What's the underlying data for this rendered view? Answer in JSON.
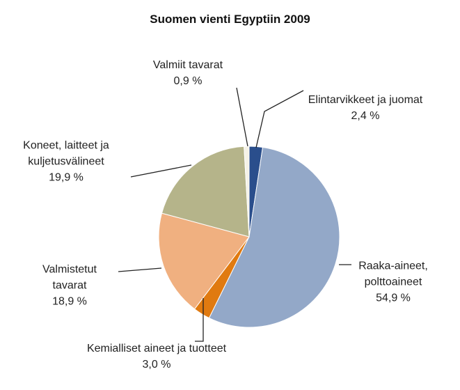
{
  "chart_data": {
    "type": "pie",
    "title": "Suomen vienti Egyptiin 2009",
    "categories": [
      "Elintarvikkeet ja juomat",
      "Raaka-aineet, polttoaineet",
      "Kemialliset aineet ja tuotteet",
      "Valmistetut tavarat",
      "Koneet, laitteet ja kuljetusvälineet",
      "Valmiit tavarat"
    ],
    "values": [
      2.4,
      54.9,
      3.0,
      18.9,
      19.9,
      0.9
    ],
    "value_labels": [
      "2,4 %",
      "54,9 %",
      "3,0 %",
      "18,9 %",
      "19,9 %",
      "0,9 %"
    ],
    "colors": [
      "#2a4e8c",
      "#93a8c8",
      "#e07a10",
      "#f0b080",
      "#b5b48a",
      "#f5f2e6"
    ]
  }
}
